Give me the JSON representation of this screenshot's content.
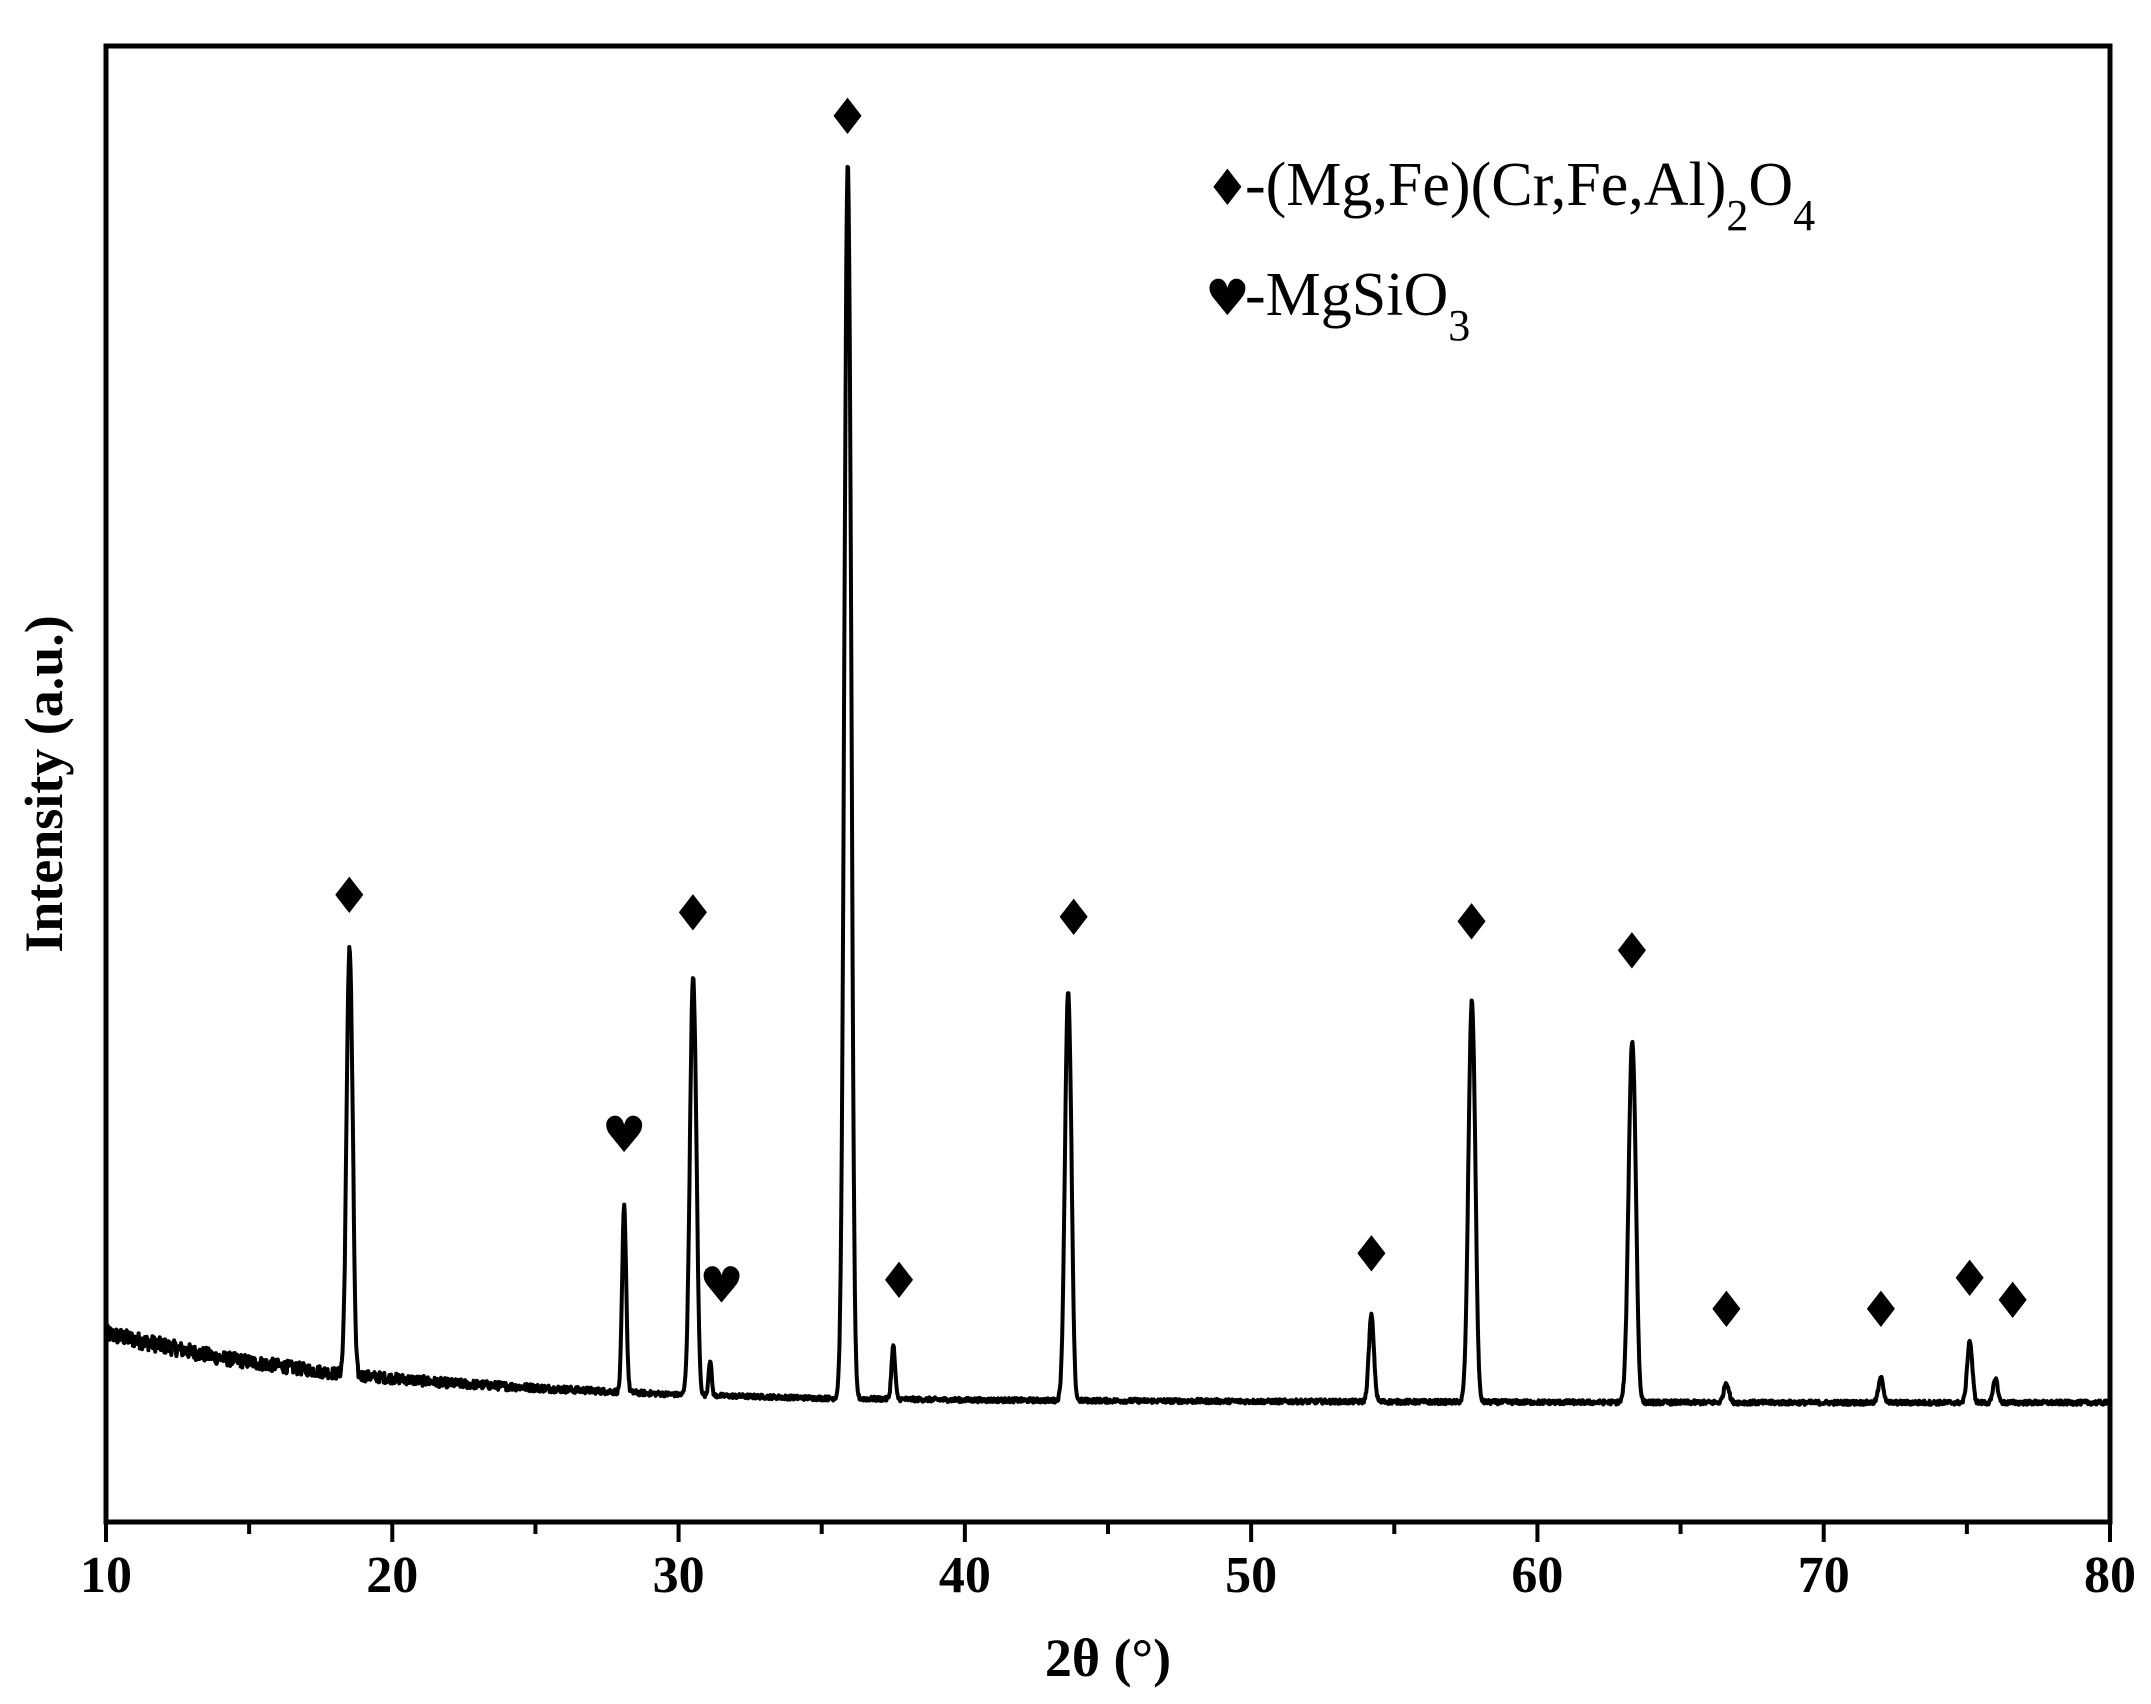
{
  "chart_data": {
    "type": "line",
    "xlabel": "2θ (°)",
    "ylabel": "Intensity (a.u.)",
    "xlim": [
      10,
      80
    ],
    "x_ticks": [
      "10",
      "20",
      "30",
      "40",
      "50",
      "60",
      "70",
      "80"
    ],
    "y_ticks_shown": false,
    "grid": false,
    "legend_position": "top-right",
    "legend": [
      {
        "symbol": "diamond",
        "symbol_glyph": "♦",
        "text": "-(Mg,Fe)(Cr,Fe,Al)",
        "sub1": "2",
        "text2": "O",
        "sub2": "4"
      },
      {
        "symbol": "heart",
        "symbol_glyph": "♥",
        "text": "-MgSiO",
        "sub1": "3",
        "text2": "",
        "sub2": ""
      }
    ],
    "series": [
      {
        "color": "#000000",
        "baseline": [
          [
            10,
            150
          ],
          [
            14,
            95
          ],
          [
            18,
            60
          ],
          [
            22,
            38
          ],
          [
            26,
            24
          ],
          [
            30,
            12
          ],
          [
            35,
            4
          ],
          [
            40,
            0
          ],
          [
            50,
            -3
          ],
          [
            60,
            -5
          ],
          [
            70,
            -6
          ],
          [
            80,
            -6
          ]
        ],
        "peaks": [
          {
            "x": 18.5,
            "height": 950,
            "width": 0.28,
            "phase": "diamond"
          },
          {
            "x": 28.1,
            "height": 420,
            "width": 0.2,
            "phase": "heart"
          },
          {
            "x": 30.5,
            "height": 920,
            "width": 0.3,
            "phase": "diamond"
          },
          {
            "x": 31.1,
            "height": 80,
            "width": 0.15,
            "phase": "heart"
          },
          {
            "x": 35.9,
            "height": 2710,
            "width": 0.32,
            "phase": "diamond"
          },
          {
            "x": 37.5,
            "height": 120,
            "width": 0.18,
            "phase": "diamond"
          },
          {
            "x": 43.6,
            "height": 900,
            "width": 0.3,
            "phase": "diamond"
          },
          {
            "x": 54.2,
            "height": 195,
            "width": 0.25,
            "phase": "diamond"
          },
          {
            "x": 57.7,
            "height": 880,
            "width": 0.32,
            "phase": "diamond"
          },
          {
            "x": 63.3,
            "height": 790,
            "width": 0.34,
            "phase": "diamond"
          },
          {
            "x": 66.6,
            "height": 45,
            "width": 0.25,
            "phase": "diamond"
          },
          {
            "x": 72.0,
            "height": 55,
            "width": 0.25,
            "phase": "diamond"
          },
          {
            "x": 75.1,
            "height": 140,
            "width": 0.25,
            "phase": "diamond"
          },
          {
            "x": 76.0,
            "height": 55,
            "width": 0.22,
            "phase": "diamond"
          }
        ]
      }
    ],
    "annotations": [
      {
        "symbol": "♦",
        "x": 18.5,
        "y": 1100
      },
      {
        "symbol": "♥",
        "x": 28.1,
        "y": 560
      },
      {
        "symbol": "♦",
        "x": 30.5,
        "y": 1060
      },
      {
        "symbol": "♥",
        "x": 31.5,
        "y": 220
      },
      {
        "symbol": "♦",
        "x": 35.9,
        "y": 2860
      },
      {
        "symbol": "♦",
        "x": 37.7,
        "y": 230
      },
      {
        "symbol": "♦",
        "x": 43.8,
        "y": 1050
      },
      {
        "symbol": "♦",
        "x": 54.2,
        "y": 290
      },
      {
        "symbol": "♦",
        "x": 57.7,
        "y": 1040
      },
      {
        "symbol": "♦",
        "x": 63.3,
        "y": 975
      },
      {
        "symbol": "♦",
        "x": 66.6,
        "y": 165
      },
      {
        "symbol": "♦",
        "x": 72.0,
        "y": 165
      },
      {
        "symbol": "♦",
        "x": 75.1,
        "y": 235
      },
      {
        "symbol": "♦",
        "x": 76.6,
        "y": 185
      }
    ]
  }
}
